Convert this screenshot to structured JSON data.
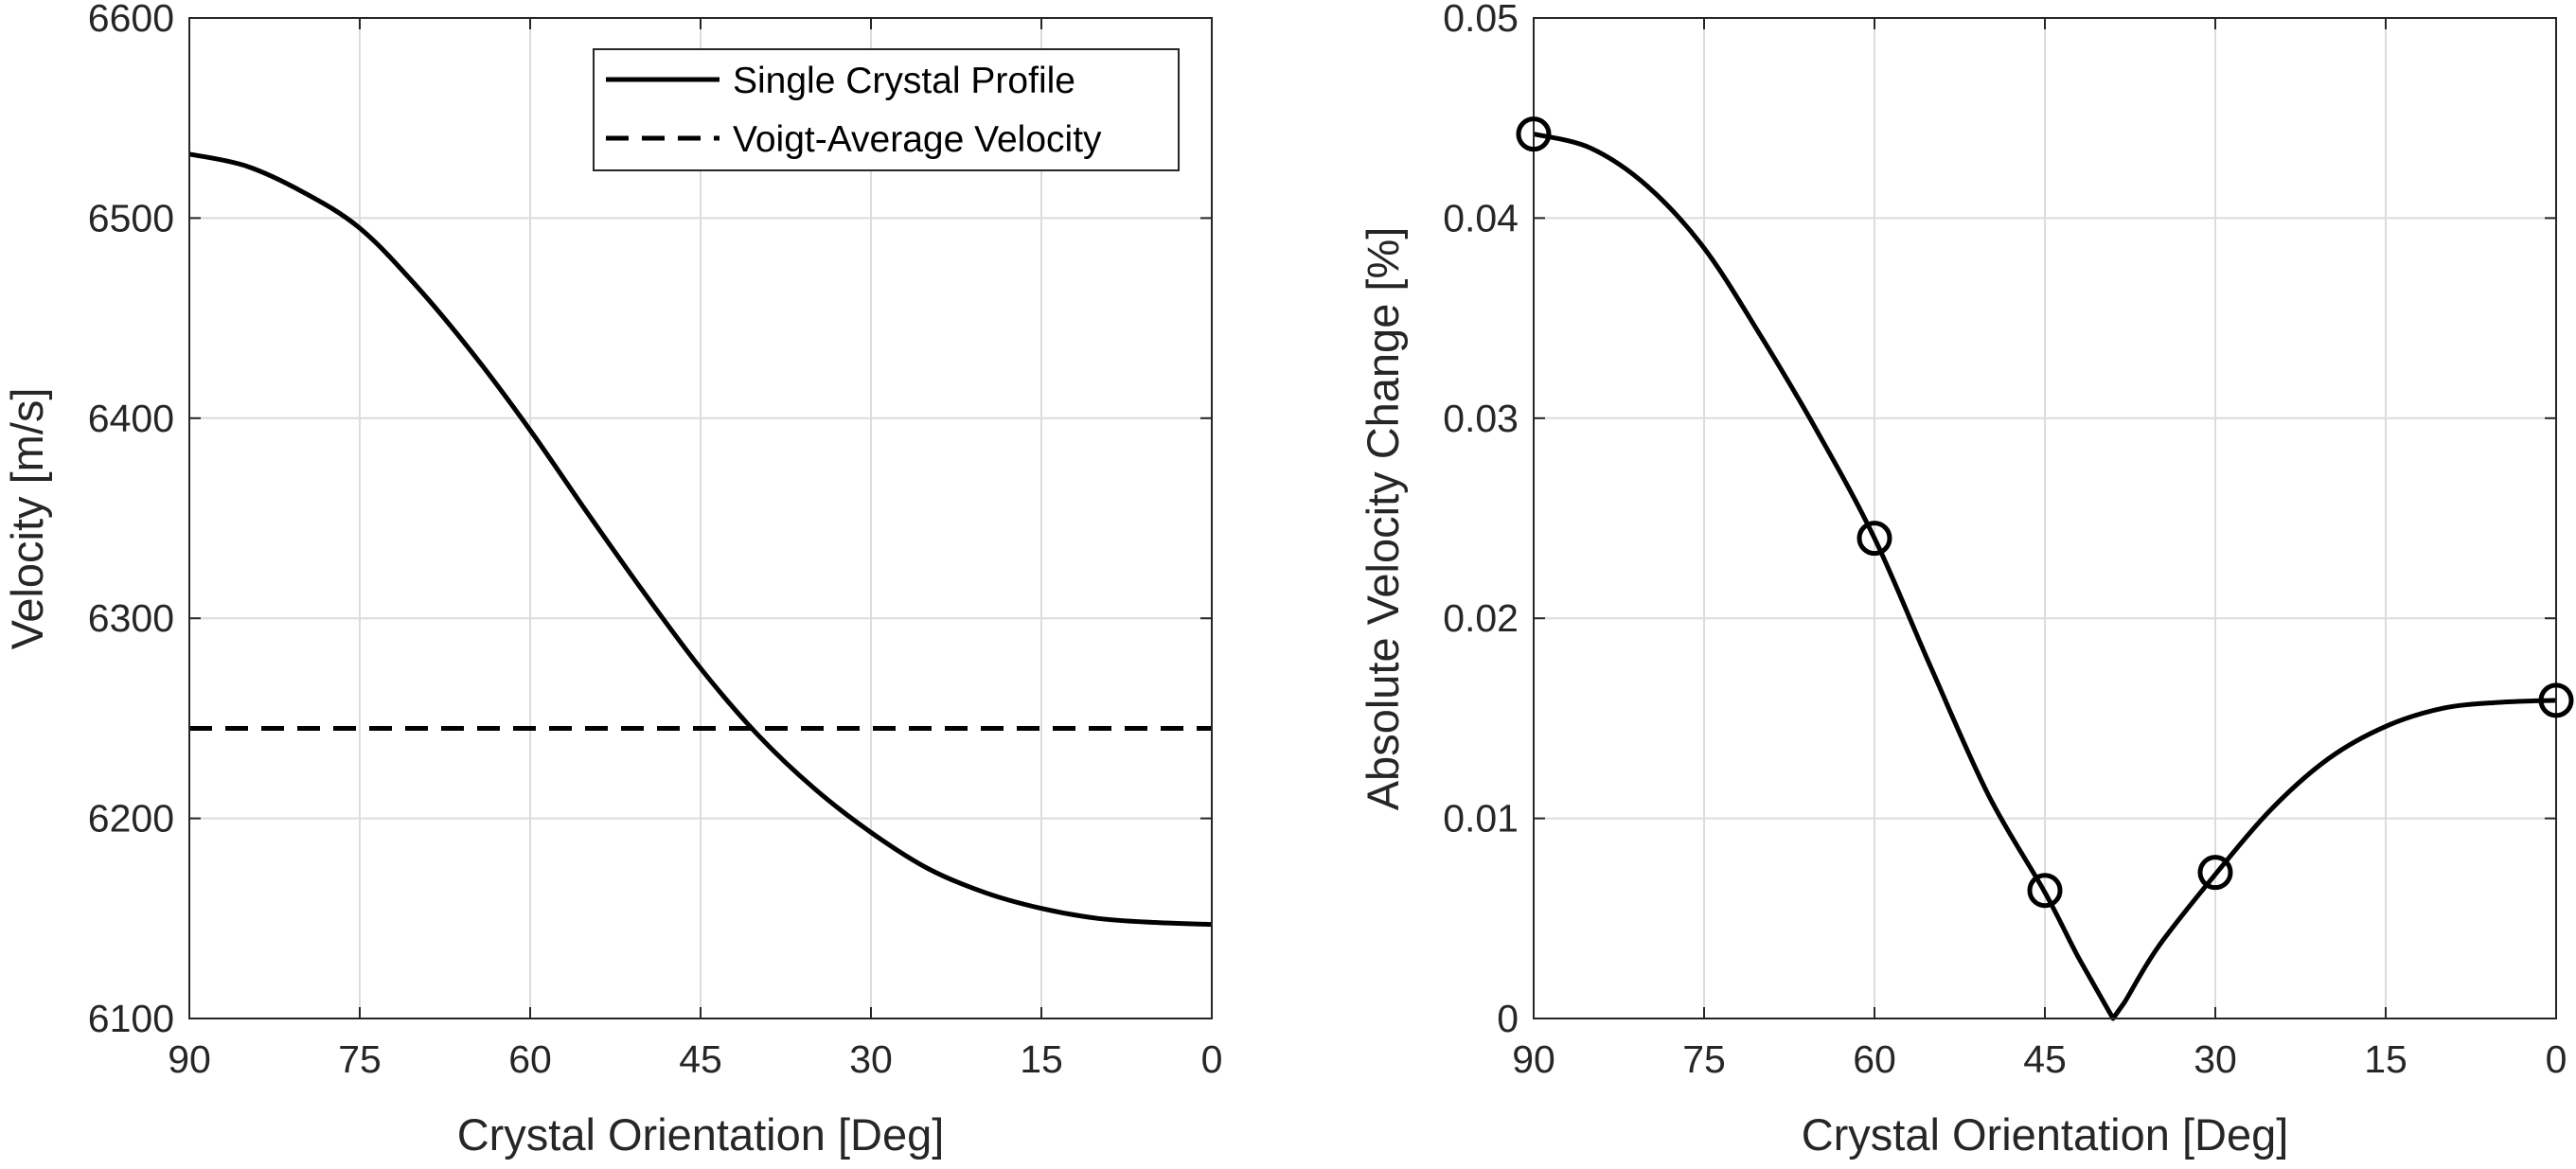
{
  "colors": {
    "line": "#000000",
    "grid": "#dcdcdc",
    "axis": "#262626",
    "background": "#ffffff"
  },
  "chart_data": [
    {
      "type": "line",
      "title": "",
      "xlabel": "Crystal Orientation [Deg]",
      "ylabel": "Velocity [m/s]",
      "xlim": [
        90,
        0
      ],
      "x_reversed": true,
      "ylim": [
        6100,
        6600
      ],
      "grid": true,
      "legend_position": "top-right",
      "x_ticks": [
        "90",
        "75",
        "60",
        "45",
        "30",
        "15",
        "0"
      ],
      "y_ticks": [
        "6100",
        "6200",
        "6300",
        "6400",
        "6500",
        "6600"
      ],
      "series": [
        {
          "name": "Single Crystal Profile",
          "style": "solid",
          "x": [
            90,
            85,
            80,
            75,
            70,
            65,
            60,
            55,
            50,
            45,
            40,
            35,
            30,
            25,
            20,
            15,
            10,
            5,
            0
          ],
          "y": [
            6532,
            6526,
            6513,
            6495,
            6466,
            6432,
            6394,
            6353,
            6313,
            6275,
            6242,
            6215,
            6193,
            6175,
            6163,
            6155,
            6150,
            6148,
            6147
          ]
        },
        {
          "name": "Voigt-Average Velocity",
          "style": "dashed",
          "x": [
            90,
            0
          ],
          "y": [
            6245,
            6245
          ]
        }
      ]
    },
    {
      "type": "line",
      "title": "",
      "xlabel": "Crystal Orientation [Deg]",
      "ylabel": "Absolute Velocity Change [%]",
      "xlim": [
        90,
        0
      ],
      "x_reversed": true,
      "ylim": [
        0,
        0.05
      ],
      "grid": true,
      "x_ticks": [
        "90",
        "75",
        "60",
        "45",
        "30",
        "15",
        "0"
      ],
      "y_ticks": [
        "0",
        "0.01",
        "0.02",
        "0.03",
        "0.04",
        "0.05"
      ],
      "series": [
        {
          "style": "solid",
          "x": [
            90,
            85,
            80,
            75,
            70,
            65,
            60,
            55,
            50,
            45,
            42,
            39,
            38,
            35,
            30,
            25,
            20,
            15,
            10,
            5,
            0
          ],
          "y": [
            0.0442,
            0.0435,
            0.0416,
            0.0385,
            0.0341,
            0.0293,
            0.024,
            0.0175,
            0.0112,
            0.0063,
            0.003,
            0.0,
            0.0008,
            0.0036,
            0.0072,
            0.0105,
            0.013,
            0.0146,
            0.0155,
            0.0158,
            0.0159
          ]
        }
      ],
      "markers": {
        "shape": "circle-open",
        "x": [
          90,
          60,
          45,
          30,
          0
        ],
        "y": [
          0.0442,
          0.024,
          0.0064,
          0.0073,
          0.0159
        ]
      }
    }
  ]
}
